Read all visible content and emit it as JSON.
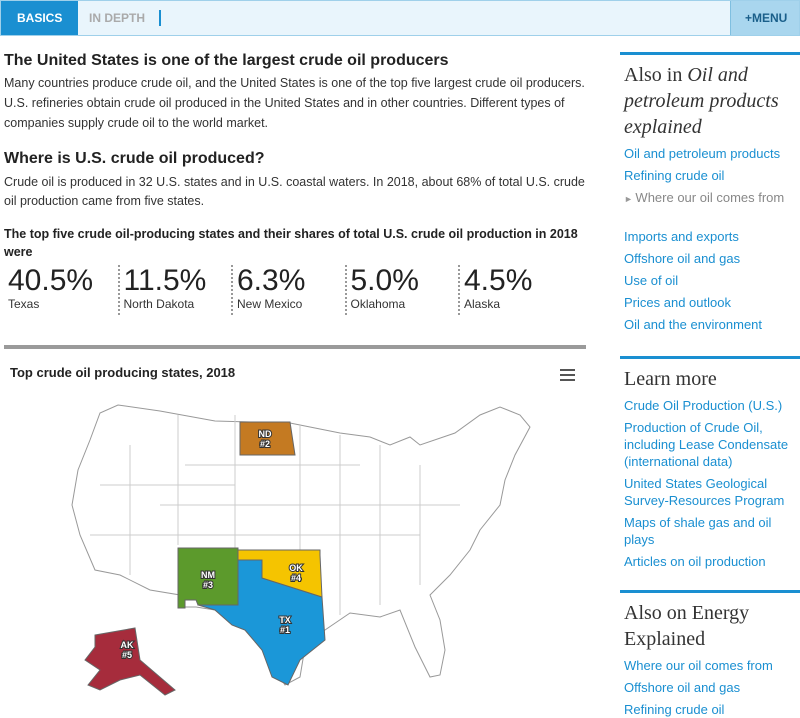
{
  "nav": {
    "tabs": [
      "BASICS",
      "IN DEPTH"
    ],
    "menu": "+MENU"
  },
  "article": {
    "title": "The United States is one of the largest crude oil producers",
    "intro": "Many countries produce crude oil, and the United States is one of the top five largest crude oil producers. U.S. refineries obtain crude oil produced in the United States and in other countries. Different types of companies supply crude oil to the world market.",
    "heading2": "Where is U.S. crude oil produced?",
    "paragraph2": "Crude oil is produced in 32 U.S. states and in U.S. coastal waters. In 2018, about 68% of total U.S. crude oil production came from five states.",
    "stats_caption": "The top five crude oil-producing states and their shares of total U.S. crude oil production in 2018 were",
    "stats": [
      {
        "value": "40.5%",
        "label": "Texas"
      },
      {
        "value": "11.5%",
        "label": "North Dakota"
      },
      {
        "value": "6.3%",
        "label": "New Mexico"
      },
      {
        "value": "5.0%",
        "label": "Oklahoma"
      },
      {
        "value": "4.5%",
        "label": "Alaska"
      }
    ]
  },
  "map": {
    "title": "Top crude oil producing states, 2018",
    "states": [
      {
        "abbr": "TX",
        "rank": "#1",
        "color": "#1b97d8"
      },
      {
        "abbr": "ND",
        "rank": "#2",
        "color": "#c47a22"
      },
      {
        "abbr": "NM",
        "rank": "#3",
        "color": "#5c9a2c"
      },
      {
        "abbr": "OK",
        "rank": "#4",
        "color": "#f5c400"
      },
      {
        "abbr": "AK",
        "rank": "#5",
        "color": "#a62c3c"
      }
    ]
  },
  "sidebar": [
    {
      "title_prefix": "Also in",
      "title_italic": "Oil and petroleum products explained",
      "links": [
        "Oil and petroleum products",
        "Refining crude oil",
        "Where our oil comes from",
        "Imports and exports",
        "Offshore oil and gas",
        "Use of oil",
        "Prices and outlook",
        "Oil and the environment"
      ],
      "current": 2
    },
    {
      "title": "Learn more",
      "links": [
        "Crude Oil Production (U.S.)",
        "Production of Crude Oil, including Lease Condensate (international data)",
        "United States Geological Survey-Resources Program",
        "Maps of shale gas and oil plays",
        "Articles on oil production"
      ]
    },
    {
      "title": "Also on Energy Explained",
      "links": [
        "Where our oil comes from",
        "Offshore oil and gas",
        "Refining crude oil"
      ]
    }
  ]
}
